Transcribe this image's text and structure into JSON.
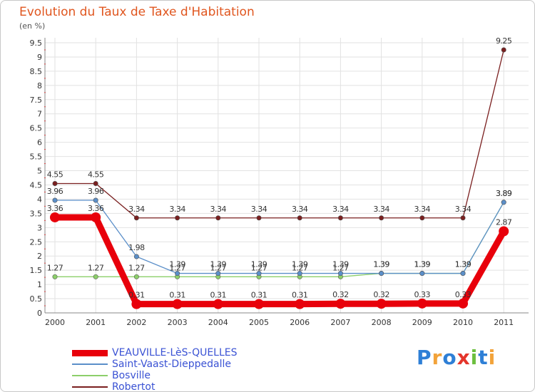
{
  "chart_data": {
    "type": "line",
    "title": "Evolution du Taux de Taxe d'Habitation",
    "unit": "(en %)",
    "xlabel": "",
    "ylabel": "",
    "categories": [
      "2000",
      "2001",
      "2002",
      "2003",
      "2004",
      "2005",
      "2006",
      "2007",
      "2008",
      "2009",
      "2010",
      "2011"
    ],
    "ylim": [
      0,
      9.5
    ],
    "yticks": [
      "0",
      "0.5",
      "1",
      "1.5",
      "2",
      "2.5",
      "3",
      "3.5",
      "4",
      "4.5",
      "5",
      "5.5",
      "6",
      "6.5",
      "7",
      "7.5",
      "8",
      "8.5",
      "9",
      "9.5"
    ],
    "series": [
      {
        "name": "Robertot",
        "color": "#7a1f1f",
        "values": [
          4.55,
          4.55,
          3.34,
          3.34,
          3.34,
          3.34,
          3.34,
          3.34,
          3.34,
          3.34,
          3.34,
          9.25
        ],
        "labels": [
          "4.55",
          "4.55",
          "3.34",
          "3.34",
          "3.34",
          "3.34",
          "3.34",
          "3.34",
          "3.34",
          "3.34",
          "3.34",
          "9.25"
        ]
      },
      {
        "name": "Bosville",
        "color": "#8ccf6a",
        "values": [
          1.27,
          1.27,
          1.27,
          1.27,
          1.27,
          1.27,
          1.27,
          1.27,
          1.39,
          1.39,
          1.39,
          3.89
        ],
        "labels": [
          "1.27",
          "1.27",
          "1.27",
          "1.27",
          "1.27",
          "1.27",
          "1.27",
          "1.27",
          "1.39",
          "1.39",
          "1.39",
          "3.89"
        ]
      },
      {
        "name": "Saint-Vaast-Dieppedalle",
        "color": "#5b8fc9",
        "values": [
          3.96,
          3.96,
          1.98,
          1.39,
          1.39,
          1.39,
          1.39,
          1.39,
          1.39,
          1.39,
          1.39,
          3.89
        ],
        "labels": [
          "3.96",
          "3.96",
          "1.98",
          "1.39",
          "1.39",
          "1.39",
          "1.39",
          "1.39",
          "1.39",
          "1.39",
          "1.39",
          "3.89"
        ]
      },
      {
        "name": "VEAUVILLE-LèS-QUELLES",
        "color": "#e8000b",
        "values": [
          3.36,
          3.36,
          0.31,
          0.31,
          0.31,
          0.31,
          0.31,
          0.32,
          0.32,
          0.33,
          0.33,
          2.87
        ],
        "labels": [
          "3.36",
          "3.36",
          "0.31",
          "0.31",
          "0.31",
          "0.31",
          "0.31",
          "0.32",
          "0.32",
          "0.33",
          "0.33",
          "2.87"
        ]
      }
    ]
  },
  "legend": {
    "items": [
      {
        "label": "VEAUVILLE-LèS-QUELLES",
        "color": "#e8000b"
      },
      {
        "label": "Saint-Vaast-Dieppedalle",
        "color": "#5b8fc9"
      },
      {
        "label": "Bosville",
        "color": "#8ccf6a"
      },
      {
        "label": "Robertot",
        "color": "#7a1f1f"
      }
    ]
  },
  "brand": {
    "letters": [
      {
        "char": "P",
        "color": "#2e7fd6"
      },
      {
        "char": "r",
        "color": "#f2a33a"
      },
      {
        "char": "o",
        "color": "#2e7fd6"
      },
      {
        "char": "x",
        "color": "#e4352b"
      },
      {
        "char": "i",
        "color": "#6cbf3f"
      },
      {
        "char": "t",
        "color": "#2e7fd6"
      },
      {
        "char": "i",
        "color": "#f2a33a"
      }
    ]
  }
}
